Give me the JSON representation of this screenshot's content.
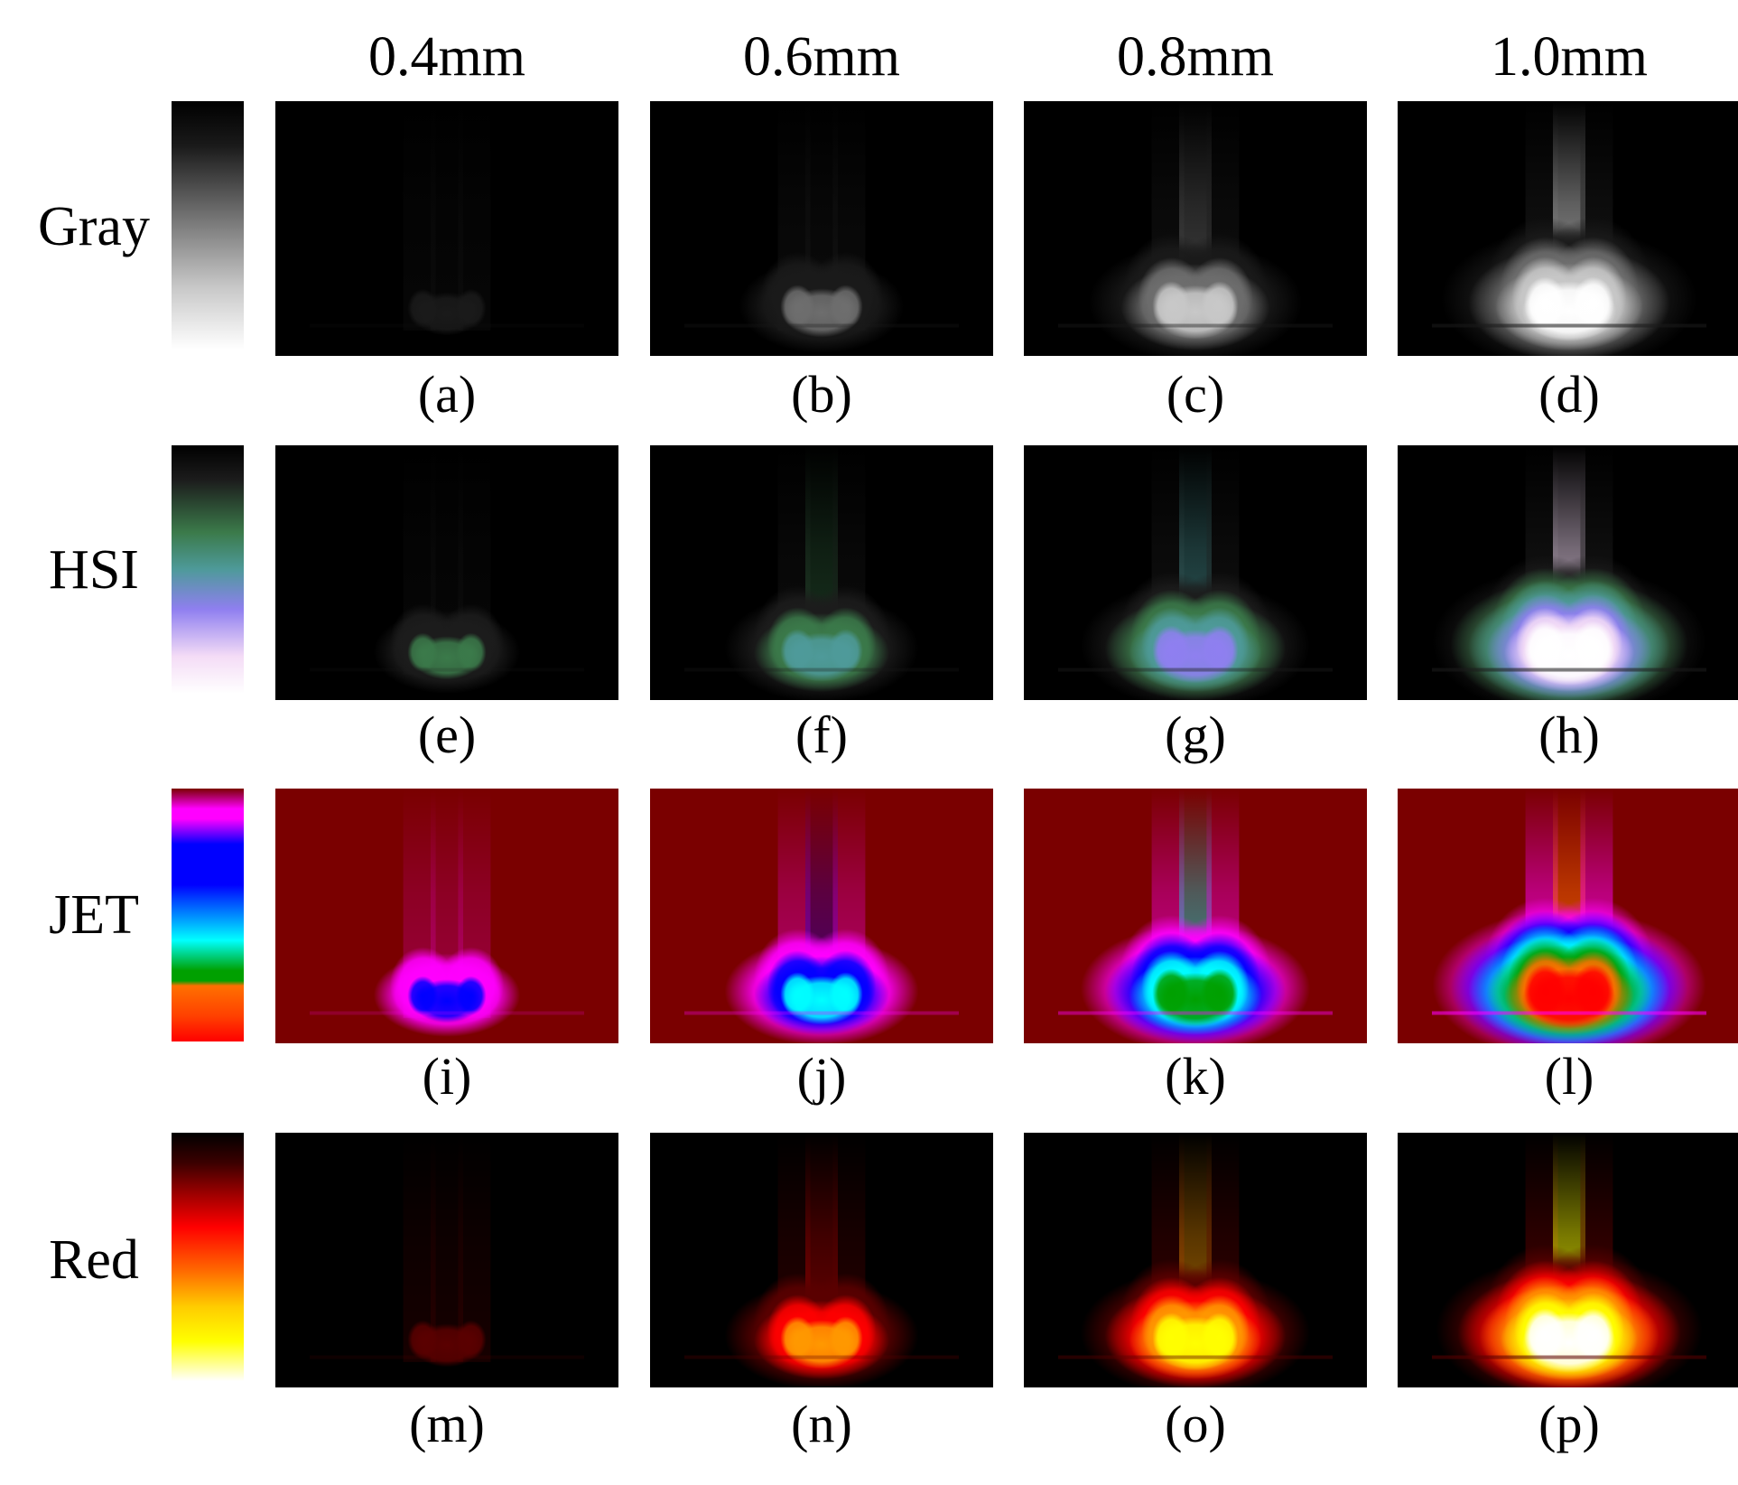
{
  "column_headers": [
    "0.4mm",
    "0.6mm",
    "0.8mm",
    "1.0mm"
  ],
  "rows": [
    {
      "label": "Gray",
      "colormap": "gray",
      "captions": [
        "(a)",
        "(b)",
        "(c)",
        "(d)"
      ]
    },
    {
      "label": "HSI",
      "colormap": "hsi",
      "captions": [
        "(e)",
        "(f)",
        "(g)",
        "(h)"
      ]
    },
    {
      "label": "JET",
      "colormap": "jet",
      "captions": [
        "(i)",
        "(j)",
        "(k)",
        "(l)"
      ]
    },
    {
      "label": "Red",
      "colormap": "red",
      "captions": [
        "(m)",
        "(n)",
        "(o)",
        "(p)"
      ]
    }
  ],
  "intensity_levels": [
    0.28,
    0.5,
    0.7,
    0.95
  ],
  "colormaps": {
    "gray": [
      "#000000",
      "#1a1a1a",
      "#6e6e6e",
      "#c8c8c8",
      "#ffffff"
    ],
    "hsi": [
      "#000000",
      "#1c1c1c",
      "#3b7a4a",
      "#4e9a9a",
      "#8f7ff0",
      "#f4dcf6",
      "#ffffff"
    ],
    "jet": [
      "#7a0000",
      "#ff00ff",
      "#0000ff",
      "#00ffff",
      "#00a000",
      "#ff7000",
      "#ff0000"
    ],
    "red": [
      "#000000",
      "#5a0000",
      "#ff0000",
      "#ff9900",
      "#ffff00",
      "#ffffff"
    ]
  }
}
